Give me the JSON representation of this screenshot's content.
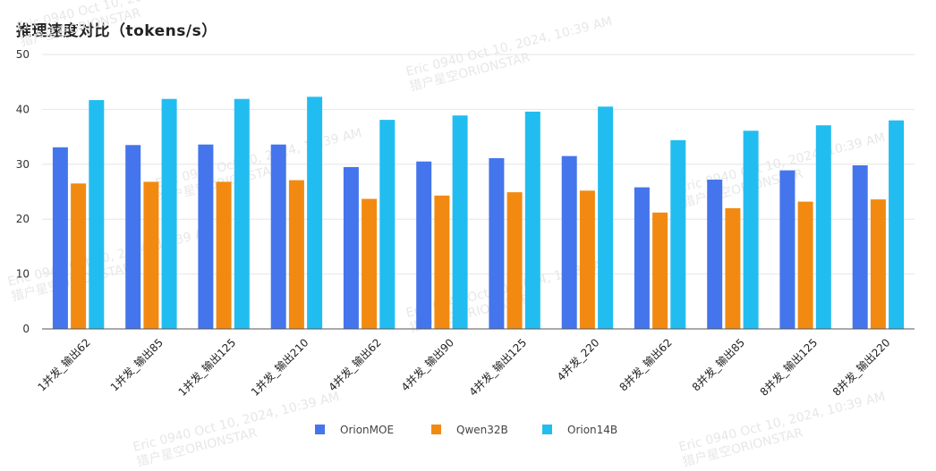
{
  "title": "推理速度对比（tokens/s）",
  "watermark": {
    "line1": "Eric 0940 Oct 10, 2024, 10:39 AM",
    "line2": "猎户星空ORIONSTAR"
  },
  "colors": {
    "OrionMOE": "#4475ec",
    "Qwen32B": "#f28a12",
    "Orion14B": "#22bdf0",
    "grid": "#e6e6e6",
    "axis": "#555555"
  },
  "chart_data": {
    "type": "bar",
    "title": "推理速度对比（tokens/s）",
    "xlabel": "",
    "ylabel": "",
    "ylim": [
      0,
      50
    ],
    "yticks": [
      0,
      10,
      20,
      30,
      40,
      50
    ],
    "grid": true,
    "legend_position": "bottom",
    "categories": [
      "1并发_输出62",
      "1并发_输出85",
      "1并发_输出125",
      "1并发_输出210",
      "4并发_输出62",
      "4并发_输出90",
      "4并发_输出125",
      "4并发_220",
      "8并发_输出62",
      "8并发_输出85",
      "8并发_输出125",
      "8并发_输出220"
    ],
    "series": [
      {
        "name": "OrionMOE",
        "values": [
          33.1,
          33.5,
          33.6,
          33.6,
          29.5,
          30.5,
          31.1,
          31.5,
          25.8,
          27.2,
          28.9,
          29.8
        ]
      },
      {
        "name": "Qwen32B",
        "values": [
          26.5,
          26.8,
          26.8,
          27.1,
          23.7,
          24.3,
          24.9,
          25.2,
          21.2,
          22.0,
          23.2,
          23.6
        ]
      },
      {
        "name": "Orion14B",
        "values": [
          41.7,
          41.9,
          41.9,
          42.3,
          38.1,
          38.9,
          39.6,
          40.5,
          34.4,
          36.1,
          37.1,
          38.0
        ]
      }
    ]
  }
}
